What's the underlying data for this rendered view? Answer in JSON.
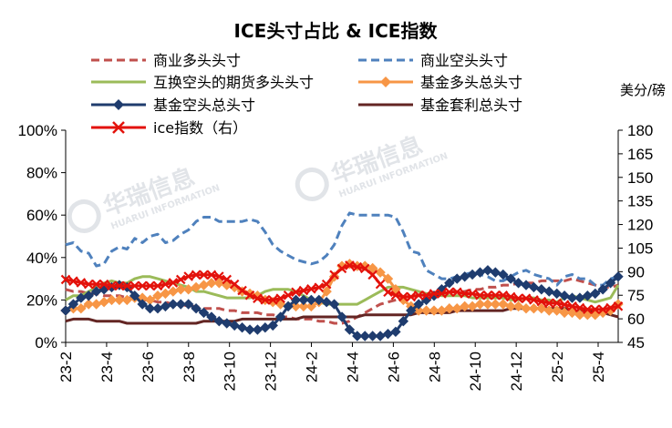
{
  "chart_data": {
    "type": "line",
    "title": "ICE头寸占比 & ICE指数",
    "right_axis_unit": "美分/磅",
    "watermark": {
      "main": "华瑞信息",
      "sub": "HUARUI INFORMATION"
    },
    "x_tick_labels": [
      "23-2",
      "23-4",
      "23-6",
      "23-8",
      "23-10",
      "23-12",
      "24-2",
      "24-4",
      "24-6",
      "24-8",
      "24-10",
      "24-12",
      "25-2",
      "25-4"
    ],
    "left_axis": {
      "min": 0,
      "max": 100,
      "ticks": [
        "0%",
        "20%",
        "40%",
        "60%",
        "80%",
        "100%"
      ]
    },
    "right_axis": {
      "min": 45,
      "max": 180,
      "ticks": [
        "45",
        "60",
        "75",
        "90",
        "105",
        "120",
        "135",
        "150",
        "165",
        "180"
      ]
    },
    "legend": [
      "商业多头头寸",
      "商业空头头寸",
      "互换空头的期货多头头寸",
      "基金多头总头寸",
      "基金空头总头寸",
      "基金套利总头寸",
      "ice指数（右）"
    ],
    "series": [
      {
        "name": "商业多头头寸",
        "axis": "left",
        "color": "#c0504d",
        "style": "dashed",
        "values": [
          25,
          24,
          24,
          23,
          23,
          22,
          22,
          22,
          21,
          21,
          20,
          20,
          19,
          19,
          18,
          18,
          17,
          17,
          16,
          16,
          16,
          15,
          15,
          14,
          14,
          14,
          13,
          13,
          12,
          12,
          11,
          11,
          11,
          10,
          10,
          9,
          9,
          10,
          12,
          14,
          16,
          18,
          19,
          20,
          21,
          22,
          22,
          22,
          23,
          23,
          24,
          24,
          24,
          25,
          25,
          26,
          26,
          27,
          27,
          28,
          28,
          28,
          29,
          29,
          29,
          29,
          30,
          29,
          28,
          27,
          26,
          26,
          27
        ]
      },
      {
        "name": "商业空头头寸",
        "axis": "left",
        "color": "#4f81bd",
        "style": "dashed",
        "values": [
          46,
          47,
          43,
          42,
          36,
          37,
          43,
          45,
          44,
          49,
          47,
          50,
          51,
          47,
          48,
          51,
          53,
          57,
          59,
          59,
          57,
          57,
          57,
          57,
          58,
          57,
          52,
          46,
          43,
          41,
          39,
          38,
          37,
          38,
          41,
          46,
          55,
          61,
          60,
          60,
          60,
          60,
          60,
          59,
          52,
          43,
          42,
          34,
          32,
          30,
          30,
          31,
          32,
          33,
          32,
          31,
          29,
          29,
          31,
          33,
          34,
          32,
          31,
          30,
          27,
          31,
          32,
          30,
          30,
          27,
          27,
          30,
          31
        ]
      },
      {
        "name": "互换空头的期货多头头寸",
        "axis": "left",
        "color": "#9bbb59",
        "style": "solid",
        "values": [
          20,
          22,
          22,
          24,
          26,
          28,
          29,
          28,
          28,
          30,
          31,
          31,
          30,
          29,
          28,
          27,
          26,
          24,
          24,
          23,
          22,
          21,
          21,
          21,
          21,
          22,
          24,
          25,
          25,
          25,
          24,
          22,
          20,
          19,
          18,
          18,
          18,
          18,
          18,
          20,
          22,
          24,
          26,
          26,
          26,
          25,
          24,
          23,
          23,
          22,
          22,
          22,
          22,
          21,
          21,
          21,
          21,
          21,
          20,
          20,
          21,
          21,
          20,
          20,
          19,
          21,
          22,
          21,
          20,
          19,
          20,
          21,
          27
        ]
      },
      {
        "name": "基金多头总头寸",
        "axis": "left",
        "color": "#f79646",
        "style": "marker",
        "values": [
          15,
          16,
          16,
          18,
          18,
          19,
          20,
          20,
          20,
          21,
          21,
          20,
          22,
          23,
          24,
          25,
          25,
          26,
          27,
          28,
          28,
          27,
          26,
          24,
          23,
          22,
          20,
          19,
          18,
          17,
          17,
          17,
          17,
          19,
          24,
          31,
          36,
          37,
          36,
          36,
          35,
          33,
          30,
          25,
          20,
          17,
          15,
          15,
          15,
          15,
          16,
          16,
          17,
          17,
          18,
          18,
          18,
          18,
          17,
          17,
          16,
          16,
          16,
          15,
          15,
          14,
          14,
          13,
          13,
          13,
          14,
          15,
          18
        ]
      },
      {
        "name": "基金空头总头寸",
        "axis": "left",
        "color": "#1f3c6e",
        "style": "marker",
        "values": [
          15,
          18,
          21,
          22,
          24,
          25,
          26,
          27,
          26,
          22,
          18,
          16,
          16,
          17,
          18,
          18,
          18,
          16,
          14,
          12,
          10,
          9,
          8,
          7,
          6,
          6,
          7,
          8,
          12,
          17,
          20,
          20,
          20,
          20,
          19,
          18,
          12,
          6,
          3,
          3,
          3,
          3,
          4,
          5,
          10,
          15,
          18,
          20,
          22,
          25,
          28,
          30,
          31,
          32,
          33,
          34,
          33,
          32,
          30,
          28,
          27,
          26,
          25,
          24,
          23,
          22,
          21,
          21,
          22,
          23,
          25,
          28,
          31
        ]
      },
      {
        "name": "基金套利总头寸",
        "axis": "left",
        "color": "#632523",
        "style": "solid",
        "values": [
          10,
          11,
          11,
          11,
          10,
          10,
          10,
          10,
          9,
          9,
          9,
          9,
          9,
          9,
          9,
          9,
          9,
          9,
          10,
          10,
          10,
          10,
          10,
          11,
          11,
          11,
          11,
          11,
          11,
          11,
          11,
          12,
          12,
          12,
          12,
          12,
          12,
          12,
          12,
          13,
          13,
          13,
          13,
          13,
          13,
          13,
          14,
          14,
          14,
          14,
          14,
          15,
          15,
          15,
          15,
          15,
          15,
          15,
          16,
          16,
          16,
          16,
          16,
          16,
          16,
          16,
          15,
          15,
          15,
          14,
          14,
          13,
          12
        ]
      },
      {
        "name": "ice指数（右）",
        "axis": "right",
        "color": "#e3120b",
        "style": "cross",
        "values": [
          85,
          84,
          83,
          82,
          82,
          82,
          81,
          81,
          81,
          81,
          81,
          81,
          81,
          82,
          83,
          85,
          87,
          88,
          88,
          88,
          87,
          85,
          82,
          78,
          75,
          73,
          72,
          72,
          73,
          75,
          77,
          78,
          79,
          80,
          82,
          88,
          92,
          94,
          93,
          92,
          88,
          82,
          77,
          75,
          74,
          74,
          75,
          75,
          76,
          76,
          77,
          77,
          76,
          76,
          75,
          75,
          75,
          75,
          74,
          73,
          73,
          72,
          71,
          70,
          70,
          69,
          68,
          67,
          66,
          66,
          66,
          67,
          68
        ]
      }
    ]
  }
}
